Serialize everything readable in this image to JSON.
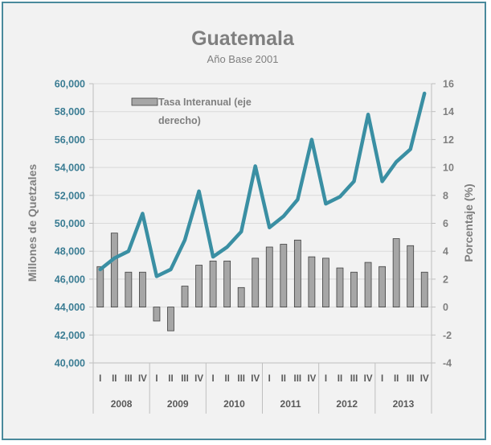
{
  "chart_data": {
    "type": "bar+line",
    "title": "Guatemala",
    "subtitle": "Año Base 2001",
    "ylabel_left": "Millones de Quetzales",
    "ylabel_right": "Porcentaje (%)",
    "left_axis": {
      "ylim": [
        40000,
        60000
      ],
      "ticks": [
        40000,
        42000,
        44000,
        46000,
        48000,
        50000,
        52000,
        54000,
        56000,
        58000,
        60000
      ],
      "tick_labels": [
        "40,000",
        "42,000",
        "44,000",
        "46,000",
        "48,000",
        "50,000",
        "52,000",
        "54,000",
        "56,000",
        "58,000",
        "60,000"
      ]
    },
    "right_axis": {
      "ylim": [
        -4,
        16
      ],
      "ticks": [
        -4,
        -2,
        0,
        2,
        4,
        6,
        8,
        10,
        12,
        14,
        16
      ],
      "tick_labels": [
        "-4",
        "-2",
        "0",
        "2",
        "4",
        "6",
        "8",
        "10",
        "12",
        "14",
        "16"
      ]
    },
    "quarters": [
      "I",
      "II",
      "III",
      "IV"
    ],
    "years": [
      "2008",
      "2009",
      "2010",
      "2011",
      "2012",
      "2013"
    ],
    "legend": {
      "position": "top-left",
      "entries": [
        "Tasa Interanual (eje derecho)"
      ]
    },
    "series": [
      {
        "name": "Tasa Interanual (eje derecho)",
        "type": "bar",
        "axis": "right",
        "color": "#a6a6a6",
        "values": [
          2.9,
          5.3,
          2.5,
          2.5,
          -1.0,
          -1.7,
          1.5,
          3.0,
          3.3,
          3.3,
          1.4,
          3.5,
          4.3,
          4.5,
          4.8,
          3.6,
          3.5,
          2.8,
          2.5,
          3.2,
          2.9,
          4.9,
          4.4,
          2.5
        ]
      },
      {
        "type": "line",
        "axis": "left",
        "color": "#3a8fa3",
        "values": [
          46700,
          47500,
          48000,
          50700,
          46200,
          46700,
          48800,
          52300,
          47600,
          48300,
          49400,
          54100,
          49700,
          50500,
          51700,
          56000,
          51400,
          51900,
          53000,
          57800,
          53000,
          54400,
          55300,
          59300
        ]
      }
    ]
  }
}
